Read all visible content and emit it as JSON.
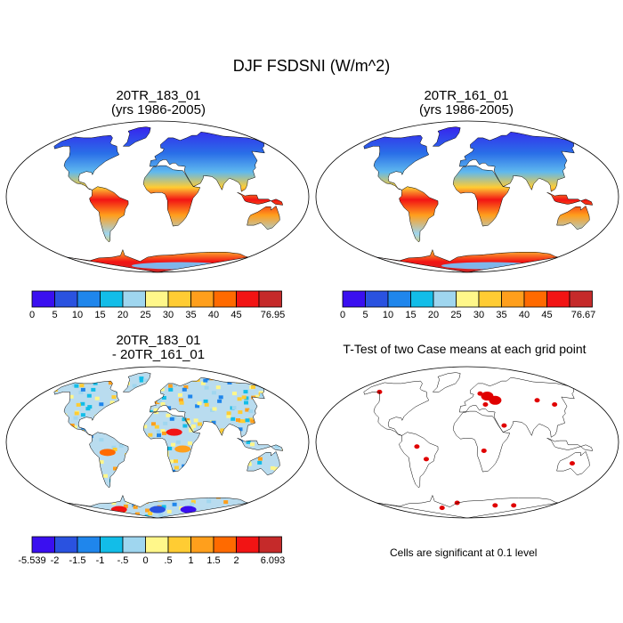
{
  "figure": {
    "title": "DJF FSDSNI (W/m^2)"
  },
  "panels": [
    {
      "id": "p1",
      "title_line1": "20TR_183_01",
      "title_line2": "(yrs 1986-2005)",
      "type": "field"
    },
    {
      "id": "p2",
      "title_line1": "20TR_161_01",
      "title_line2": "(yrs 1986-2005)",
      "type": "field"
    },
    {
      "id": "p3",
      "title_line1": "20TR_183_01",
      "title_line2": "- 20TR_161_01",
      "type": "difference"
    },
    {
      "id": "p4",
      "title_line1": "T-Test of two Case means at each grid point",
      "title_line2": "",
      "type": "ttest"
    }
  ],
  "colorbars": {
    "field_colors": [
      "#3a0ff0",
      "#2a52e0",
      "#1f86ec",
      "#12bde8",
      "#9fd6ef",
      "#fff78a",
      "#ffcc33",
      "#ff9f1c",
      "#ff6a00",
      "#f21414",
      "#c52a2a"
    ],
    "cb1_labels": [
      "0",
      "5",
      "10",
      "15",
      "20",
      "25",
      "30",
      "35",
      "40",
      "45",
      "76.95"
    ],
    "cb2_labels": [
      "0",
      "5",
      "10",
      "15",
      "20",
      "25",
      "30",
      "35",
      "40",
      "45",
      "76.67"
    ],
    "diff_colors": [
      "#3a0ff0",
      "#2a52e0",
      "#1f86ec",
      "#12bde8",
      "#9fd6ef",
      "#fff78a",
      "#ffcc33",
      "#ff9f1c",
      "#ff6a00",
      "#f21414",
      "#c52a2a"
    ],
    "cb3_labels": [
      "-5.539",
      "-2",
      "-1.5",
      "-1",
      "-.5",
      "0",
      ".5",
      "1",
      "1.5",
      "2",
      "6.093"
    ]
  },
  "ttest_note": "Cells are significant at 0.1 level",
  "significance_color": "#e00000"
}
